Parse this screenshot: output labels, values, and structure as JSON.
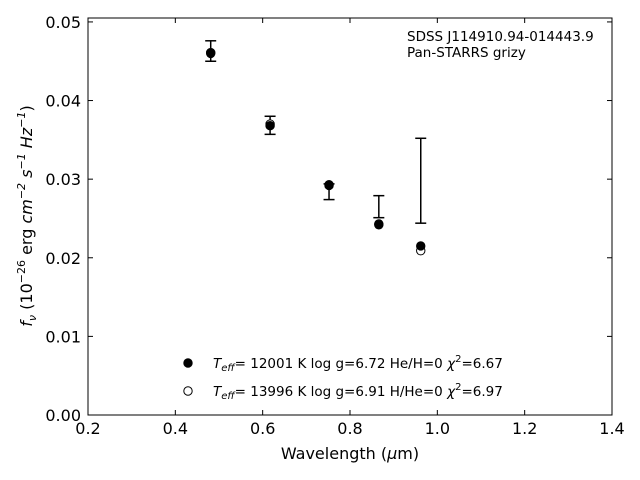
{
  "chart_data": {
    "type": "scatter",
    "title": "",
    "xlabel": "Wavelength (μm)",
    "ylabel": "f_ν (10^-26 erg cm^-2 s^-1 Hz^-1)",
    "xlim": [
      0.2,
      1.4
    ],
    "ylim": [
      0.0,
      0.0505
    ],
    "xticks": [
      0.2,
      0.4,
      0.6,
      0.8,
      1.0,
      1.2,
      1.4
    ],
    "xtick_labels": [
      "0.2",
      "0.4",
      "0.6",
      "0.8",
      "1.0",
      "1.2",
      "1.4"
    ],
    "yticks": [
      0.0,
      0.01,
      0.02,
      0.03,
      0.04,
      0.05
    ],
    "ytick_labels": [
      "0.00",
      "0.01",
      "0.02",
      "0.03",
      "0.04",
      "0.05"
    ],
    "grid": false,
    "legend_position": "bottom-center",
    "annotations": [
      "SDSS J114910.94-014443.9",
      "Pan-STARRS grizy"
    ],
    "observations": {
      "x": [
        0.481,
        0.617,
        0.752,
        0.866,
        0.962
      ],
      "y_low": [
        0.045,
        0.0357,
        0.0274,
        0.0251,
        0.0244
      ],
      "y_high": [
        0.0476,
        0.038,
        0.0294,
        0.0279,
        0.0352
      ]
    },
    "series": [
      {
        "name": "T_eff= 12001 K  log g=6.72  He/H=0  χ²=6.67",
        "marker": "filled-circle",
        "color": "#000000",
        "x": [
          0.481,
          0.617,
          0.752,
          0.866,
          0.962
        ],
        "y": [
          0.046,
          0.0368,
          0.0292,
          0.0242,
          0.0215
        ]
      },
      {
        "name": "T_eff= 13996 K  log g=6.91  H/He=0  χ²=6.97",
        "marker": "open-circle",
        "color": "#000000",
        "x": [
          0.481,
          0.617,
          0.752,
          0.866,
          0.962
        ],
        "y": [
          0.0461,
          0.037,
          0.0293,
          0.0243,
          0.0209
        ]
      }
    ]
  }
}
